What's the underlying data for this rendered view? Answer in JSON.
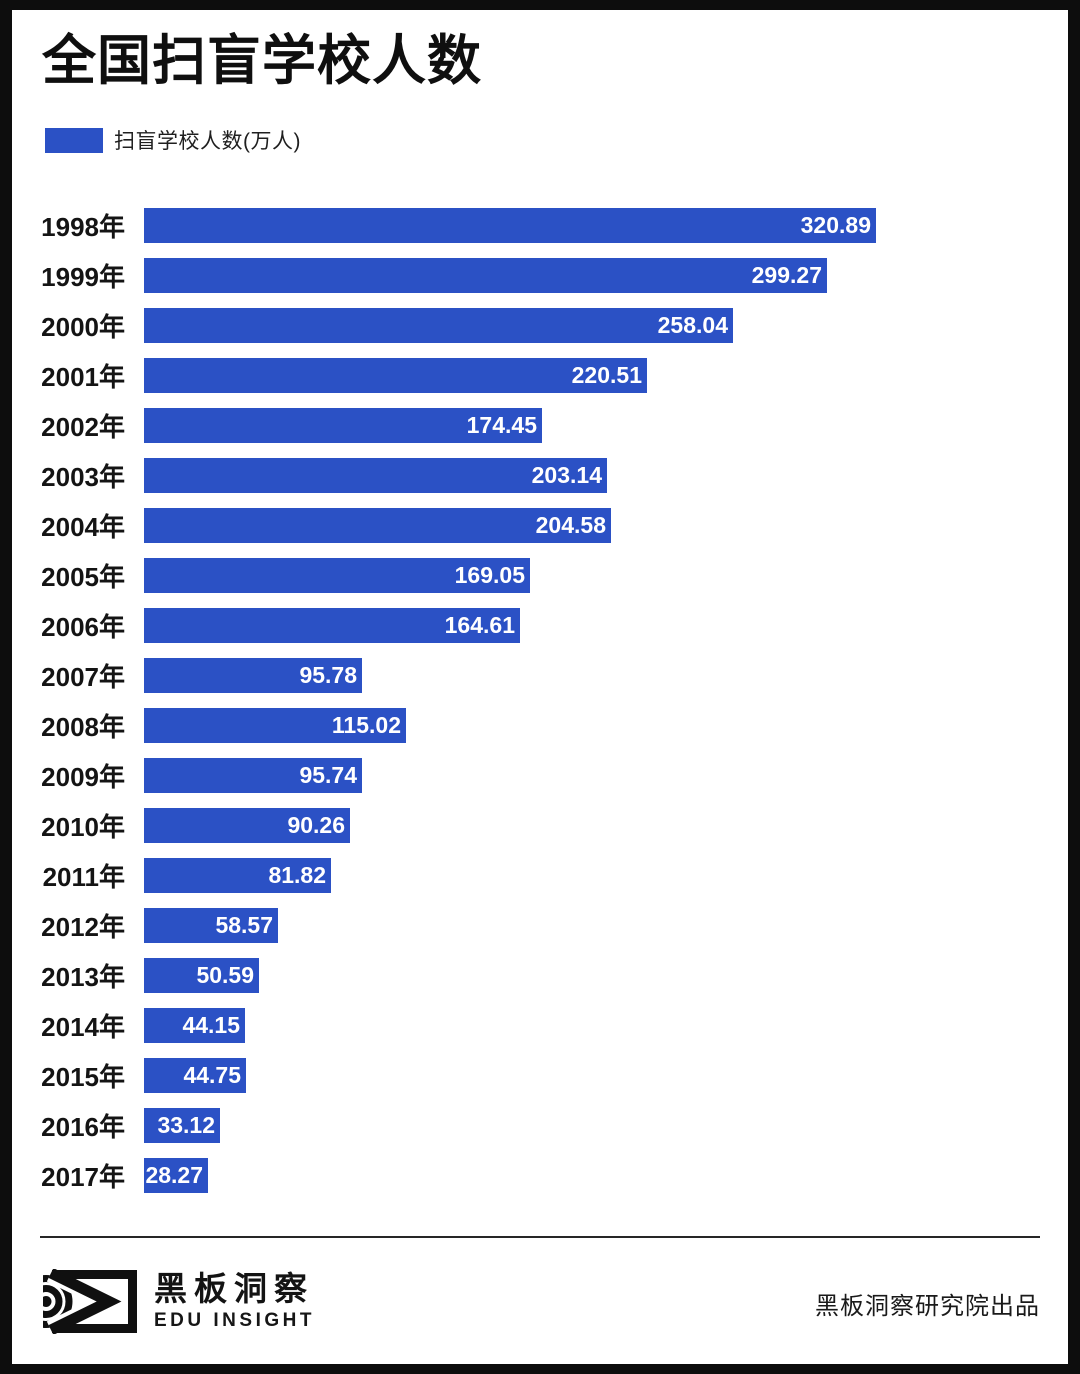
{
  "title": "全国扫盲学校人数",
  "legend": {
    "label": "扫盲学校人数(万人)",
    "swatch_color": "#2b51c5"
  },
  "chart_data": {
    "type": "bar",
    "orientation": "horizontal",
    "title": "全国扫盲学校人数",
    "series_name": "扫盲学校人数(万人)",
    "unit": "万人",
    "categories": [
      "1998年",
      "1999年",
      "2000年",
      "2001年",
      "2002年",
      "2003年",
      "2004年",
      "2005年",
      "2006年",
      "2007年",
      "2008年",
      "2009年",
      "2010年",
      "2011年",
      "2012年",
      "2013年",
      "2014年",
      "2015年",
      "2016年",
      "2017年"
    ],
    "values": [
      320.89,
      299.27,
      258.04,
      220.51,
      174.45,
      203.14,
      204.58,
      169.05,
      164.61,
      95.78,
      115.02,
      95.74,
      90.26,
      81.82,
      58.57,
      50.59,
      44.15,
      44.75,
      33.12,
      28.27
    ],
    "xlim": [
      0,
      320.89
    ],
    "grid": false,
    "axes_visible": false,
    "legend_position": "top-left",
    "bar_color": "#2b51c5",
    "value_label_color": "#ffffff",
    "value_labels_inside_bar_right": true
  },
  "footer": {
    "logo_icon": "eye-logo",
    "logo_cn": "黑板洞察",
    "logo_en": "EDU INSIGHT",
    "credit": "黑板洞察研究院出品"
  },
  "colors": {
    "bar": "#2b51c5",
    "frame": "#0d0d0d",
    "background": "#ffffff",
    "text": "#111111"
  }
}
